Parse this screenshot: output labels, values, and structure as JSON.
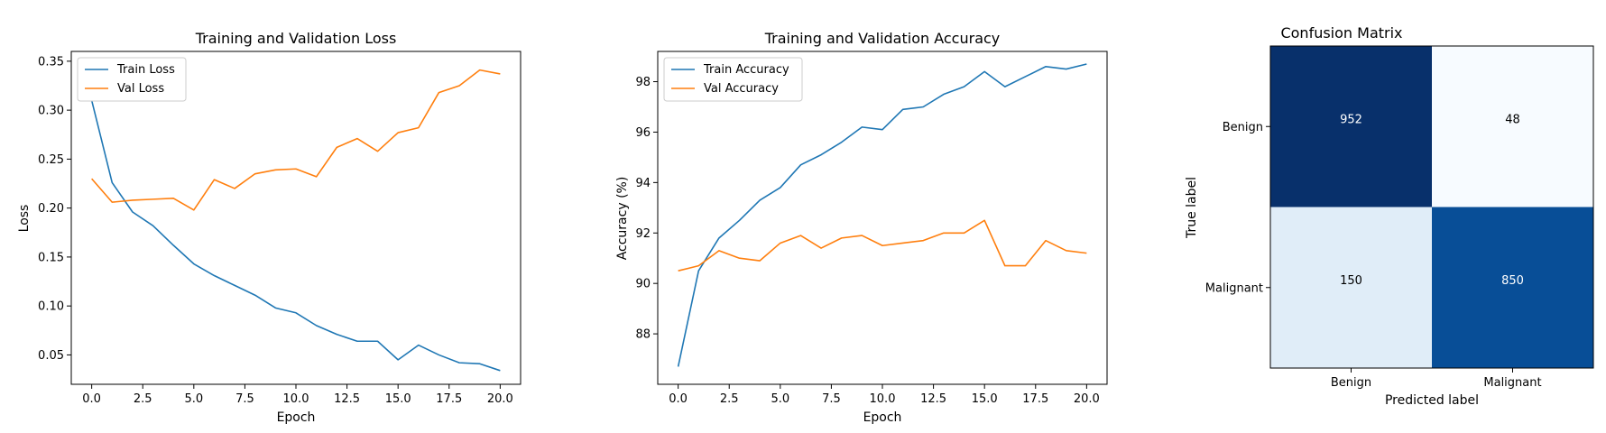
{
  "chart_data": [
    {
      "type": "line",
      "title": "Training and Validation Loss",
      "xlabel": "Epoch",
      "ylabel": "Loss",
      "xlim": [
        -1,
        21
      ],
      "ylim": [
        0.02,
        0.36
      ],
      "x_ticks": [
        0,
        2.5,
        5,
        7.5,
        10,
        12.5,
        15,
        17.5,
        20
      ],
      "x_tick_labels": [
        "0.0",
        "2.5",
        "5.0",
        "7.5",
        "10.0",
        "12.5",
        "15.0",
        "17.5",
        "20.0"
      ],
      "y_ticks": [
        0.05,
        0.1,
        0.15,
        0.2,
        0.25,
        0.3,
        0.35
      ],
      "y_tick_labels": [
        "0.05",
        "0.10",
        "0.15",
        "0.20",
        "0.25",
        "0.30",
        "0.35"
      ],
      "legend_position": "top-left",
      "x": [
        0,
        1,
        2,
        3,
        4,
        5,
        6,
        7,
        8,
        9,
        10,
        11,
        12,
        13,
        14,
        15,
        16,
        17,
        18,
        19,
        20
      ],
      "series": [
        {
          "name": "Train Loss",
          "color": "#1f77b4",
          "values": [
            0.31,
            0.226,
            0.196,
            0.182,
            0.162,
            0.143,
            0.131,
            0.121,
            0.111,
            0.098,
            0.093,
            0.08,
            0.071,
            0.064,
            0.064,
            0.045,
            0.06,
            0.05,
            0.042,
            0.041,
            0.034
          ]
        },
        {
          "name": "Val Loss",
          "color": "#ff7f0e",
          "values": [
            0.23,
            0.206,
            0.208,
            0.209,
            0.21,
            0.198,
            0.229,
            0.22,
            0.235,
            0.239,
            0.24,
            0.232,
            0.262,
            0.271,
            0.258,
            0.277,
            0.282,
            0.318,
            0.325,
            0.341,
            0.337
          ]
        }
      ]
    },
    {
      "type": "line",
      "title": "Training and Validation Accuracy",
      "xlabel": "Epoch",
      "ylabel": "Accuracy (%)",
      "xlim": [
        -1,
        21
      ],
      "ylim": [
        86.0,
        99.2
      ],
      "x_ticks": [
        0,
        2.5,
        5,
        7.5,
        10,
        12.5,
        15,
        17.5,
        20
      ],
      "x_tick_labels": [
        "0.0",
        "2.5",
        "5.0",
        "7.5",
        "10.0",
        "12.5",
        "15.0",
        "17.5",
        "20.0"
      ],
      "y_ticks": [
        88,
        90,
        92,
        94,
        96,
        98
      ],
      "y_tick_labels": [
        "88",
        "90",
        "92",
        "94",
        "96",
        "98"
      ],
      "legend_position": "top-left",
      "x": [
        0,
        1,
        2,
        3,
        4,
        5,
        6,
        7,
        8,
        9,
        10,
        11,
        12,
        13,
        14,
        15,
        16,
        17,
        18,
        19,
        20
      ],
      "series": [
        {
          "name": "Train Accuracy",
          "color": "#1f77b4",
          "values": [
            86.7,
            90.5,
            91.8,
            92.5,
            93.3,
            93.8,
            94.7,
            95.1,
            95.6,
            96.2,
            96.1,
            96.9,
            97.0,
            97.5,
            97.8,
            98.4,
            97.8,
            98.2,
            98.6,
            98.5,
            98.7
          ]
        },
        {
          "name": "Val Accuracy",
          "color": "#ff7f0e",
          "values": [
            90.5,
            90.7,
            91.3,
            91.0,
            90.9,
            91.6,
            91.9,
            91.4,
            91.8,
            91.9,
            91.5,
            91.6,
            91.7,
            92.0,
            92.0,
            92.5,
            90.7,
            90.7,
            91.7,
            91.3,
            91.2
          ]
        }
      ]
    },
    {
      "type": "heatmap",
      "title": "Confusion Matrix",
      "xlabel": "Predicted label",
      "ylabel": "True label",
      "x_categories": [
        "Benign",
        "Malignant"
      ],
      "y_categories": [
        "Benign",
        "Malignant"
      ],
      "values": [
        [
          952,
          48
        ],
        [
          150,
          850
        ]
      ],
      "colormap": "Blues"
    }
  ]
}
